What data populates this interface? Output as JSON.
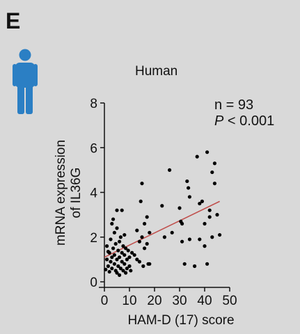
{
  "panel": {
    "letter": "E",
    "icon": "person-icon",
    "icon_color": "#2b7fc4"
  },
  "stats": {
    "n_label": "n = 93",
    "p_symbol": "P",
    "p_rest": " < 0.001"
  },
  "chart_data": {
    "type": "scatter",
    "title": "Human",
    "xlabel": "HAM-D (17) score",
    "ylabel": "mRNA expression of IL36G",
    "ylabel_lines": [
      "mRNA expression",
      "of IL36G"
    ],
    "xlim": [
      0,
      50
    ],
    "ylim": [
      0,
      8
    ],
    "xticks": [
      0,
      10,
      20,
      30,
      40,
      50
    ],
    "yticks": [
      0,
      2,
      4,
      6,
      8
    ],
    "grid": false,
    "point_color": "#000000",
    "trend_color": "#c0504d",
    "trendline": {
      "x": [
        0,
        46
      ],
      "y": [
        1.1,
        3.6
      ]
    },
    "points": [
      {
        "x": 0.5,
        "y": 0.55
      },
      {
        "x": 1,
        "y": 1.0
      },
      {
        "x": 1,
        "y": 1.6
      },
      {
        "x": 1.5,
        "y": 0.7
      },
      {
        "x": 2,
        "y": 1.3
      },
      {
        "x": 2,
        "y": 0.45
      },
      {
        "x": 2.5,
        "y": 1.9
      },
      {
        "x": 2.5,
        "y": 0.9
      },
      {
        "x": 3,
        "y": 1.1
      },
      {
        "x": 3,
        "y": 2.6
      },
      {
        "x": 3,
        "y": 0.6
      },
      {
        "x": 3.5,
        "y": 1.5
      },
      {
        "x": 3.5,
        "y": 2.8
      },
      {
        "x": 4,
        "y": 0.8
      },
      {
        "x": 4,
        "y": 1.2
      },
      {
        "x": 4,
        "y": 2.2
      },
      {
        "x": 4.5,
        "y": 0.5
      },
      {
        "x": 4.5,
        "y": 1.7
      },
      {
        "x": 5,
        "y": 1.0
      },
      {
        "x": 5,
        "y": 0.4
      },
      {
        "x": 5,
        "y": 2.4
      },
      {
        "x": 5,
        "y": 3.2
      },
      {
        "x": 5.5,
        "y": 1.4
      },
      {
        "x": 5.5,
        "y": 0.7
      },
      {
        "x": 6,
        "y": 1.8
      },
      {
        "x": 6,
        "y": 0.3
      },
      {
        "x": 6,
        "y": 1.1
      },
      {
        "x": 6.5,
        "y": 2.0
      },
      {
        "x": 6.5,
        "y": 0.6
      },
      {
        "x": 7,
        "y": 1.3
      },
      {
        "x": 7,
        "y": 3.2
      },
      {
        "x": 7,
        "y": 0.9
      },
      {
        "x": 7.5,
        "y": 1.6
      },
      {
        "x": 7.5,
        "y": 0.5
      },
      {
        "x": 8,
        "y": 0.8
      },
      {
        "x": 8,
        "y": 2.1
      },
      {
        "x": 8,
        "y": 1.2
      },
      {
        "x": 8.5,
        "y": 1.5
      },
      {
        "x": 8.5,
        "y": 0.4
      },
      {
        "x": 9,
        "y": 1.0
      },
      {
        "x": 9,
        "y": 0.6
      },
      {
        "x": 9.5,
        "y": 1.4
      },
      {
        "x": 10,
        "y": 0.7
      },
      {
        "x": 10,
        "y": 1.1
      },
      {
        "x": 10.5,
        "y": 0.5
      },
      {
        "x": 11,
        "y": 1.3
      },
      {
        "x": 12,
        "y": 1.2
      },
      {
        "x": 13,
        "y": 2.3
      },
      {
        "x": 13,
        "y": 1.0
      },
      {
        "x": 14,
        "y": 1.8
      },
      {
        "x": 14,
        "y": 0.9
      },
      {
        "x": 14.5,
        "y": 3.6
      },
      {
        "x": 15,
        "y": 4.4
      },
      {
        "x": 15,
        "y": 2.0
      },
      {
        "x": 15.5,
        "y": 0.7
      },
      {
        "x": 16,
        "y": 1.5
      },
      {
        "x": 16,
        "y": 2.6
      },
      {
        "x": 17,
        "y": 2.9
      },
      {
        "x": 17,
        "y": 1.7
      },
      {
        "x": 17.5,
        "y": 0.8
      },
      {
        "x": 18,
        "y": 2.2
      },
      {
        "x": 18,
        "y": 0.8
      },
      {
        "x": 23,
        "y": 3.4
      },
      {
        "x": 24,
        "y": 2.0
      },
      {
        "x": 26,
        "y": 5.0
      },
      {
        "x": 27,
        "y": 2.2
      },
      {
        "x": 30,
        "y": 3.3
      },
      {
        "x": 30.5,
        "y": 2.7
      },
      {
        "x": 31,
        "y": 2.6
      },
      {
        "x": 31,
        "y": 1.8
      },
      {
        "x": 32,
        "y": 0.8
      },
      {
        "x": 33,
        "y": 4.5
      },
      {
        "x": 34,
        "y": 1.9
      },
      {
        "x": 34,
        "y": 3.8
      },
      {
        "x": 36,
        "y": 0.7
      },
      {
        "x": 37,
        "y": 5.6
      },
      {
        "x": 38,
        "y": 1.9
      },
      {
        "x": 38,
        "y": 3.5
      },
      {
        "x": 39,
        "y": 3.6
      },
      {
        "x": 40,
        "y": 1.6
      },
      {
        "x": 40,
        "y": 2.6
      },
      {
        "x": 41,
        "y": 5.8
      },
      {
        "x": 41,
        "y": 0.8
      },
      {
        "x": 42,
        "y": 2.9
      },
      {
        "x": 42,
        "y": 3.2
      },
      {
        "x": 43,
        "y": 2.0
      },
      {
        "x": 43,
        "y": 4.9
      },
      {
        "x": 44,
        "y": 5.3
      },
      {
        "x": 44,
        "y": 4.4
      },
      {
        "x": 45,
        "y": 3.0
      },
      {
        "x": 46,
        "y": 2.1
      },
      {
        "x": 33.5,
        "y": 4.2
      },
      {
        "x": 1.5,
        "y": 1.35
      }
    ]
  }
}
